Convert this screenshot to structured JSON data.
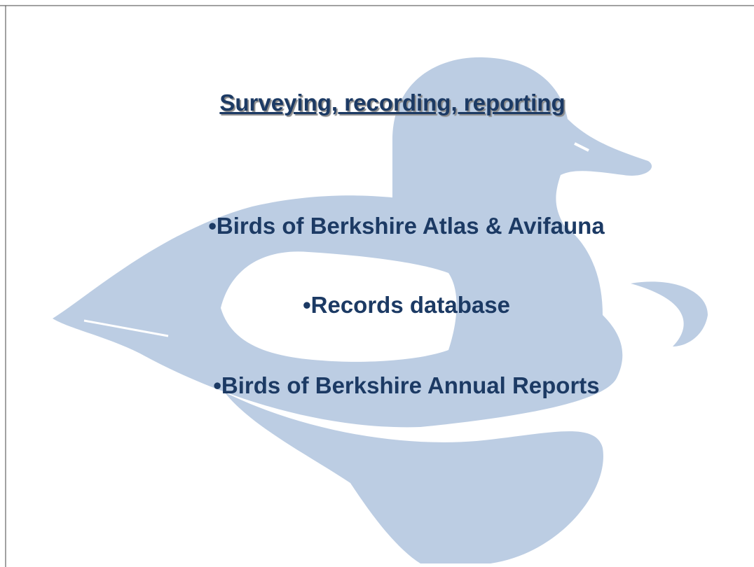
{
  "slide": {
    "title": "Surveying, recording, reporting",
    "bullets": [
      "•Birds of Berkshire Atlas & Avifauna",
      "•Records database",
      "•Birds of Berkshire Annual Reports"
    ]
  }
}
